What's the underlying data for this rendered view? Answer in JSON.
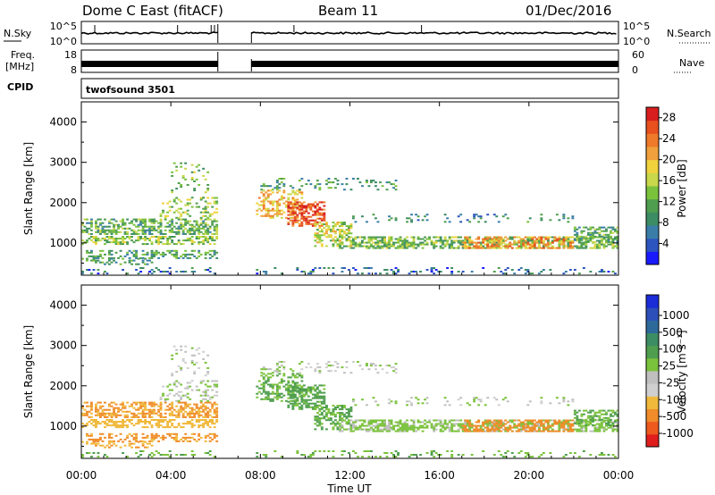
{
  "header": {
    "title": "Dome C East (fitACF)",
    "beam": "Beam 11",
    "date": "01/Dec/2016"
  },
  "top_panels": {
    "nsky": {
      "label": "N.Sky",
      "ticks": [
        "10^5",
        "10^0"
      ],
      "right_label": "N.Search",
      "right_ticks": [
        "10^5",
        "10^0"
      ]
    },
    "freq": {
      "label_line1": "Freq.",
      "label_line2": "[MHz]",
      "ticks": [
        "18",
        "8"
      ],
      "right_label": "Nave",
      "right_ticks": [
        "60",
        "0"
      ]
    },
    "cpid": {
      "label": "CPID",
      "program": "twofsound 3501"
    }
  },
  "colors": {
    "power_scale": [
      "#1a1aff",
      "#2d55c0",
      "#3a7ea8",
      "#3c8c64",
      "#4f9e4f",
      "#7bc23c",
      "#c8d84a",
      "#f0d23c",
      "#f0a03c",
      "#ee7a2a",
      "#e8501e",
      "#d81e1e"
    ],
    "velocity_scale": [
      "#e01e1e",
      "#ee5a1e",
      "#f08c2a",
      "#f0b93c",
      "#cfcfcf",
      "#bfbfbf",
      "#7bc23c",
      "#4f9e4f",
      "#3c8c64",
      "#2d6a9a",
      "#2d4fb8",
      "#1a2dd8"
    ]
  },
  "chart_data": [
    {
      "type": "heatmap",
      "name": "power",
      "ylabel": "Slant Range [km]",
      "yticks": [
        "4000",
        "3000",
        "2000",
        "1000"
      ],
      "ylim": [
        200,
        4500
      ],
      "xlim_hours": [
        0,
        24
      ],
      "colorbar_label": "Power [dB]",
      "colorbar_ticks": [
        "28",
        "24",
        "20",
        "16",
        "12",
        "8",
        "4"
      ],
      "colorbar_range": [
        0,
        30
      ]
    },
    {
      "type": "heatmap",
      "name": "velocity",
      "ylabel": "Slant Range [km]",
      "yticks": [
        "4000",
        "3000",
        "2000",
        "1000"
      ],
      "ylim": [
        200,
        4500
      ],
      "xlim_hours": [
        0,
        24
      ],
      "colorbar_label": "Velocity [m s⁻¹]",
      "colorbar_ticks": [
        "1000",
        "500",
        "100",
        "25",
        "-25",
        "-100",
        "-500",
        "-1000"
      ]
    }
  ],
  "xaxis": {
    "ticks": [
      "00:00",
      "04:00",
      "08:00",
      "12:00",
      "16:00",
      "20:00",
      "00:00"
    ],
    "label": "Time UT"
  },
  "data_gap_hours": [
    6.1,
    7.6
  ]
}
